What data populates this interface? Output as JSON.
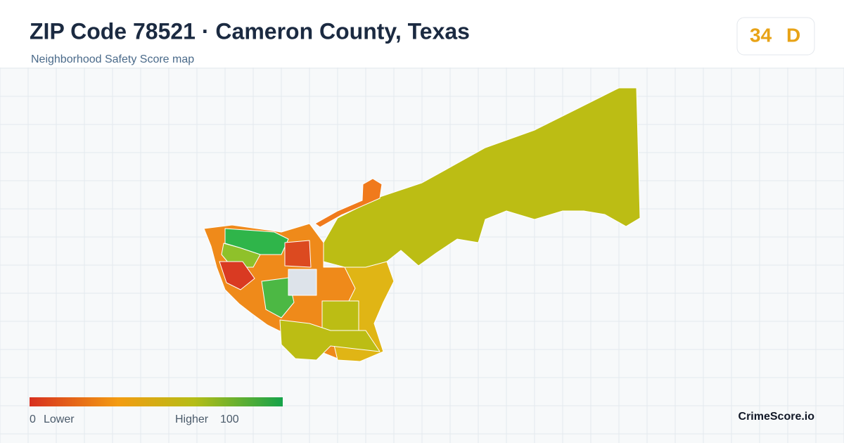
{
  "header": {
    "title": "ZIP Code 78521 · Cameron County, Texas",
    "subtitle": "Neighborhood Safety Score map"
  },
  "badge": {
    "score": 34,
    "grade": "D"
  },
  "legend": {
    "min": 0,
    "min_label": "Lower",
    "max_label": "Higher",
    "max": 100
  },
  "brand": "CrimeScore.io"
}
